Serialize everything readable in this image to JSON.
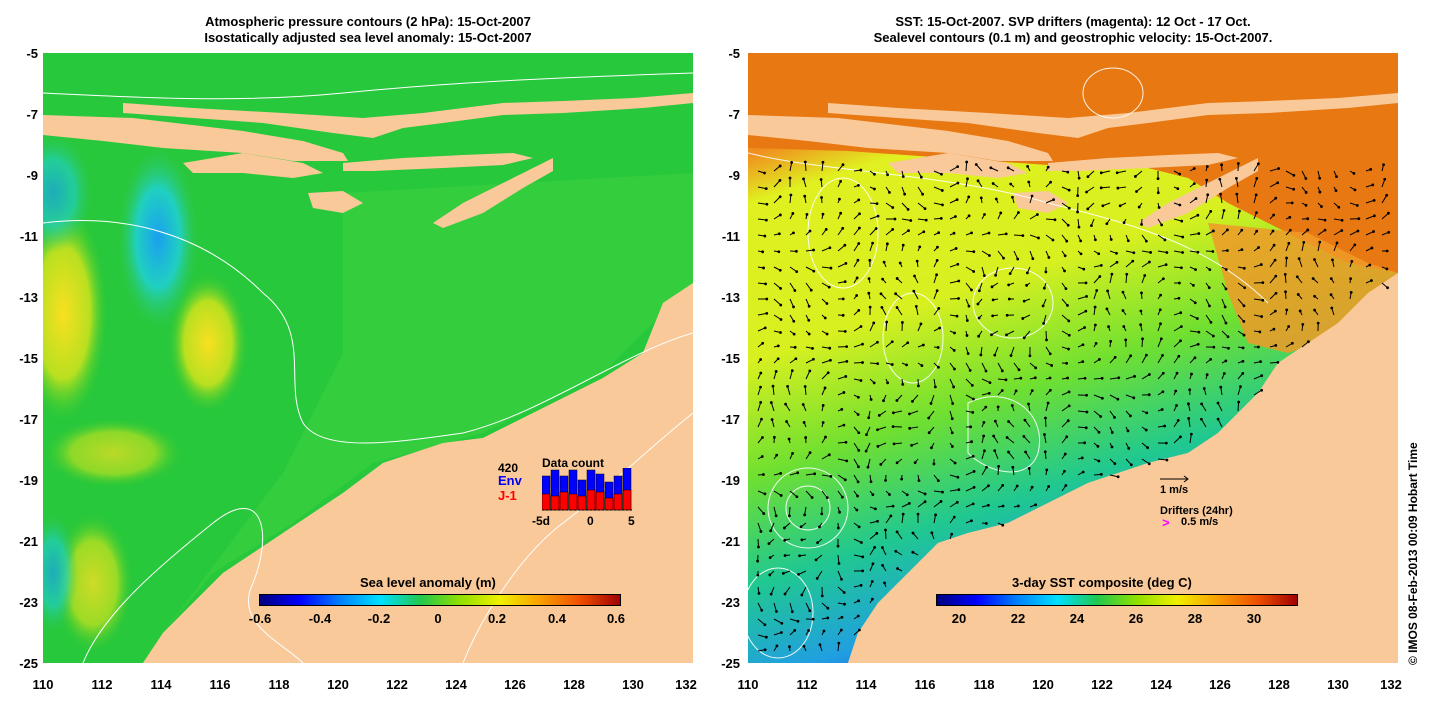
{
  "left_panel": {
    "title_line1": "Atmospheric pressure contours (2 hPa): 15-Oct-2007",
    "title_line2": "Isostatically adjusted sea level anomaly: 15-Oct-2007",
    "y_ticks": [
      "-5",
      "-7",
      "-9",
      "-11",
      "-13",
      "-15",
      "-17",
      "-19",
      "-21",
      "-23",
      "-25"
    ],
    "x_ticks": [
      "110",
      "112",
      "114",
      "116",
      "118",
      "120",
      "122",
      "124",
      "126",
      "128",
      "130",
      "132"
    ],
    "colorbar_title": "Sea level anomaly (m)",
    "colorbar_ticks": [
      "-0.6",
      "-0.4",
      "-0.2",
      "0",
      "0.2",
      "0.4",
      "0.6"
    ],
    "data_count": {
      "count": "420",
      "title": "Data count",
      "env_label": "Env",
      "j1_label": "J-1",
      "x_ticks": [
        "-5d",
        "0",
        "5"
      ],
      "env_color": "#0000ff",
      "j1_color": "#ff0000"
    }
  },
  "right_panel": {
    "title_line1": "SST: 15-Oct-2007. SVP drifters (magenta): 12 Oct - 17 Oct.",
    "title_line2": "Sealevel contours (0.1 m) and geostrophic velocity: 15-Oct-2007.",
    "y_ticks": [
      "-5",
      "-7",
      "-9",
      "-11",
      "-13",
      "-15",
      "-17",
      "-19",
      "-21",
      "-23",
      "-25"
    ],
    "x_ticks": [
      "110",
      "112",
      "114",
      "116",
      "118",
      "120",
      "122",
      "124",
      "126",
      "128",
      "130",
      "132"
    ],
    "colorbar_title": "3-day SST composite (deg C)",
    "colorbar_ticks": [
      "20",
      "22",
      "24",
      "26",
      "28",
      "30"
    ],
    "velocity_label": "1 m/s",
    "drifters_label": "Drifters (24hr)",
    "drifter_speed_label": "0.5 m/s",
    "drifter_color": "#ff00ff"
  },
  "credit": "© IMOS 08-Feb-2013 00:09 Hobart Time",
  "colors": {
    "land": "#f9c99a",
    "sla_sea": "#22c83c",
    "sst_warm": "#f08a10",
    "sst_mid": "#e8f020"
  }
}
